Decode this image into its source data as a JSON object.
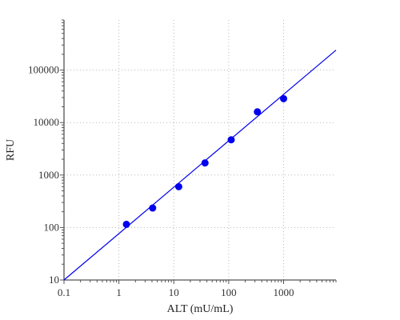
{
  "chart_data": {
    "type": "scatter",
    "title": "",
    "xlabel": "ALT (mU/mL)",
    "ylabel": "RFU",
    "x_scale": "log",
    "y_scale": "log",
    "xlim": [
      0.1,
      9000
    ],
    "ylim": [
      10,
      900000
    ],
    "x_ticks": [
      0.1,
      1,
      10,
      100,
      1000
    ],
    "x_tick_labels": [
      "0.1",
      "1",
      "10",
      "100",
      "1000"
    ],
    "y_ticks": [
      10,
      100,
      1000,
      10000,
      100000
    ],
    "y_tick_labels": [
      "10",
      "100",
      "1000",
      "10000",
      "100000"
    ],
    "grid": true,
    "series": [
      {
        "type": "scatter",
        "color": "#0000ee",
        "x": [
          1.37,
          4.12,
          12.3,
          37.0,
          111,
          333,
          1000
        ],
        "y": [
          115,
          235,
          600,
          1700,
          4700,
          16000,
          28500
        ]
      },
      {
        "type": "line",
        "color": "#0000ee",
        "x": [
          0.1,
          9000
        ],
        "y": [
          10,
          240000
        ]
      }
    ]
  }
}
